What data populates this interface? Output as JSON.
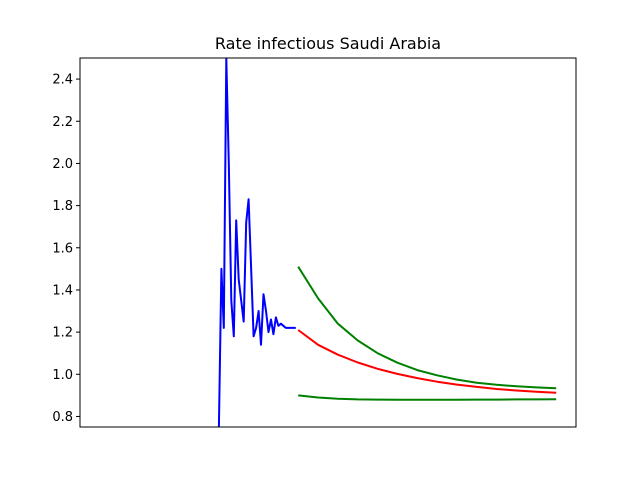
{
  "chart_data": {
    "type": "line",
    "title": "Rate infectious Saudi Arabia",
    "xlabel": "",
    "ylabel": "",
    "xlim": [
      0,
      100
    ],
    "ylim": [
      0.75,
      2.5
    ],
    "y_ticks": [
      "0.8",
      "1.0",
      "1.2",
      "1.4",
      "1.6",
      "1.8",
      "2.0",
      "2.2",
      "2.4"
    ],
    "x_ticks_visible": false,
    "grid": false,
    "legend": "none",
    "series": [
      {
        "color": "#0000ff",
        "x": [
          28.0,
          28.5,
          29.0,
          29.5,
          30.0,
          30.5,
          31.0,
          31.5,
          32.0,
          33.0,
          33.5,
          34.0,
          35.0,
          35.5,
          36.0,
          36.5,
          37.0,
          37.5,
          38.0,
          38.5,
          39.0,
          39.5,
          40.0,
          40.5,
          41.0,
          41.5,
          42.0,
          42.5,
          43.0,
          43.5
        ],
        "y": [
          0.75,
          1.5,
          1.22,
          2.5,
          2.0,
          1.35,
          1.18,
          1.73,
          1.45,
          1.25,
          1.72,
          1.83,
          1.18,
          1.22,
          1.3,
          1.14,
          1.38,
          1.3,
          1.2,
          1.26,
          1.19,
          1.27,
          1.23,
          1.24,
          1.23,
          1.22,
          1.22,
          1.22,
          1.22,
          1.22
        ]
      },
      {
        "color": "#ff0000",
        "x": [
          44,
          48,
          52,
          56,
          60,
          64,
          68,
          72,
          76,
          80,
          84,
          88,
          92,
          96
        ],
        "y": [
          1.21,
          1.14,
          1.093,
          1.056,
          1.026,
          1.002,
          0.982,
          0.965,
          0.951,
          0.94,
          0.93,
          0.923,
          0.917,
          0.912
        ]
      },
      {
        "color": "#008000",
        "x": [
          44,
          48,
          52,
          56,
          60,
          64,
          68,
          72,
          76,
          80,
          84,
          88,
          92,
          96
        ],
        "y": [
          1.51,
          1.36,
          1.24,
          1.16,
          1.1,
          1.055,
          1.02,
          0.995,
          0.975,
          0.96,
          0.95,
          0.943,
          0.938,
          0.934
        ]
      },
      {
        "color": "#008000",
        "x": [
          44,
          48,
          52,
          56,
          60,
          64,
          68,
          72,
          76,
          80,
          84,
          88,
          92,
          96
        ],
        "y": [
          0.9,
          0.89,
          0.884,
          0.881,
          0.88,
          0.879,
          0.879,
          0.879,
          0.879,
          0.88,
          0.88,
          0.881,
          0.881,
          0.882
        ]
      }
    ]
  }
}
